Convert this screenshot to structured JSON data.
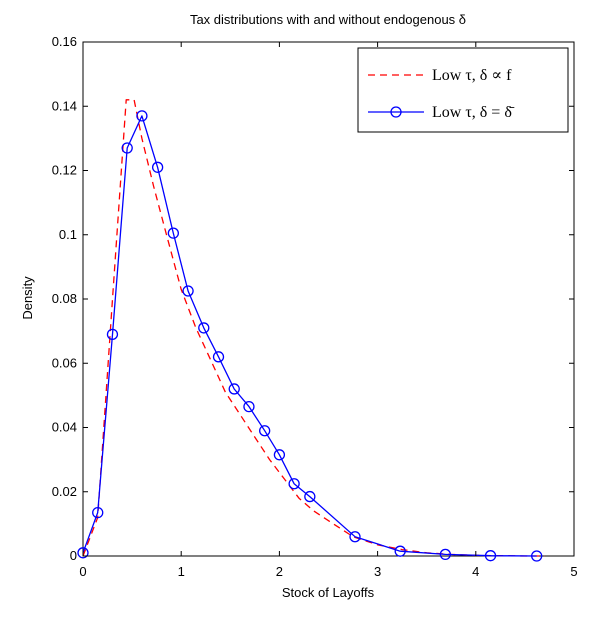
{
  "chart_data": {
    "type": "line",
    "title": "Tax distributions with and without endogenous δ",
    "xlabel": "Stock of Layoffs",
    "ylabel": "Density",
    "xlim": [
      0,
      5
    ],
    "ylim": [
      0,
      0.16
    ],
    "xticks": [
      0,
      1,
      2,
      3,
      4,
      5
    ],
    "yticks": [
      0,
      0.02,
      0.04,
      0.06,
      0.08,
      0.1,
      0.12,
      0.14,
      0.16
    ],
    "xtick_labels": [
      "0",
      "1",
      "2",
      "3",
      "4",
      "5"
    ],
    "ytick_labels": [
      "0",
      "0.02",
      "0.04",
      "0.06",
      "0.08",
      "0.1",
      "0.12",
      "0.14",
      "0.16"
    ],
    "grid": false,
    "legend_position": "top-right",
    "legend_entries": [
      "Low τ, δ ∝ f",
      "Low τ, δ = δ̄"
    ],
    "series": [
      {
        "name": "Low τ, δ ∝ f",
        "color": "#ff0000",
        "line_style": "dashed",
        "marker": "none",
        "x": [
          0,
          0.15,
          0.3,
          0.44,
          0.52,
          0.6,
          0.72,
          0.85,
          1.0,
          1.15,
          1.3,
          1.45,
          1.6,
          1.75,
          1.9,
          2.05,
          2.2,
          2.35,
          2.5,
          2.75,
          3.0,
          3.25,
          3.5,
          3.75,
          4.0,
          4.25,
          4.5,
          4.7
        ],
        "y": [
          0.0,
          0.012,
          0.08,
          0.142,
          0.142,
          0.13,
          0.115,
          0.1,
          0.083,
          0.071,
          0.061,
          0.051,
          0.044,
          0.037,
          0.03,
          0.024,
          0.018,
          0.014,
          0.011,
          0.006,
          0.0035,
          0.002,
          0.001,
          0.0005,
          0.0002,
          0.0001,
          0.0,
          0.0
        ]
      },
      {
        "name": "Low τ, δ = δ̄",
        "color": "#0000ff",
        "line_style": "solid",
        "marker": "circle",
        "x": [
          0.0,
          0.15,
          0.3,
          0.45,
          0.6,
          0.76,
          0.92,
          1.07,
          1.23,
          1.38,
          1.54,
          1.69,
          1.85,
          2.0,
          2.15,
          2.31,
          2.77,
          3.23,
          3.69,
          4.15,
          4.62
        ],
        "y": [
          0.001,
          0.0135,
          0.069,
          0.127,
          0.137,
          0.121,
          0.1005,
          0.0825,
          0.071,
          0.062,
          0.052,
          0.0465,
          0.039,
          0.0315,
          0.0225,
          0.0185,
          0.006,
          0.0015,
          0.0005,
          0.0001,
          0.0
        ]
      }
    ]
  }
}
